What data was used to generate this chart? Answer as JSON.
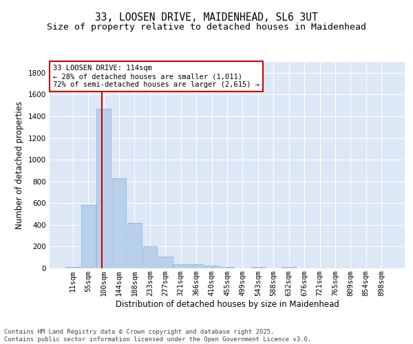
{
  "title_line1": "33, LOOSEN DRIVE, MAIDENHEAD, SL6 3UT",
  "title_line2": "Size of property relative to detached houses in Maidenhead",
  "xlabel": "Distribution of detached houses by size in Maidenhead",
  "ylabel": "Number of detached properties",
  "categories": [
    "11sqm",
    "55sqm",
    "100sqm",
    "144sqm",
    "188sqm",
    "233sqm",
    "277sqm",
    "321sqm",
    "366sqm",
    "410sqm",
    "455sqm",
    "499sqm",
    "543sqm",
    "588sqm",
    "632sqm",
    "676sqm",
    "721sqm",
    "765sqm",
    "809sqm",
    "854sqm",
    "898sqm"
  ],
  "values": [
    15,
    585,
    1470,
    830,
    415,
    200,
    105,
    40,
    35,
    25,
    10,
    0,
    15,
    0,
    15,
    0,
    0,
    0,
    0,
    0,
    0
  ],
  "bar_color": "#b8d0ea",
  "bar_edge_color": "#8aafd4",
  "red_line_x": 2,
  "red_line_color": "#cc0000",
  "ylim": [
    0,
    1900
  ],
  "yticks": [
    0,
    200,
    400,
    600,
    800,
    1000,
    1200,
    1400,
    1600,
    1800
  ],
  "annotation_text": "33 LOOSEN DRIVE: 114sqm\n← 28% of detached houses are smaller (1,011)\n72% of semi-detached houses are larger (2,615) →",
  "annotation_box_facecolor": "#ffffff",
  "annotation_box_edgecolor": "#cc0000",
  "plot_bg_color": "#dce8f5",
  "grid_color": "#ffffff",
  "fig_bg_color": "#ffffff",
  "footer_text": "Contains HM Land Registry data © Crown copyright and database right 2025.\nContains public sector information licensed under the Open Government Licence v3.0.",
  "title_fontsize": 10.5,
  "subtitle_fontsize": 9.5,
  "axis_label_fontsize": 8.5,
  "tick_fontsize": 7.5,
  "annotation_fontsize": 7.5,
  "footer_fontsize": 6.5
}
